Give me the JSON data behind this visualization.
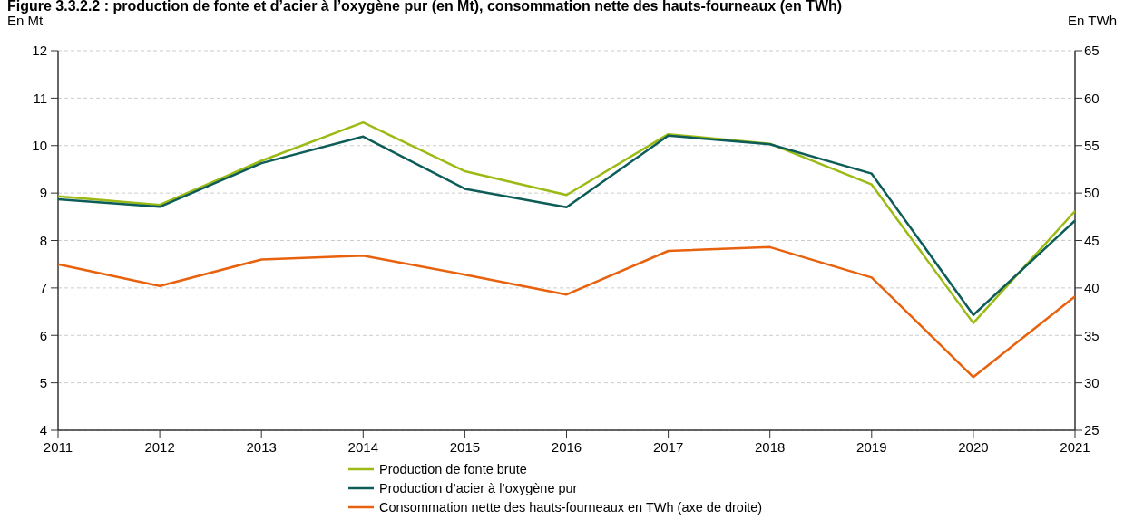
{
  "chart_data": {
    "type": "line",
    "title": "Figure 3.3.2.2 : production de fonte et d’acier à l’oxygène pur (en Mt), consommation nette des hauts-fourneaux (en TWh)",
    "ylabel": "En Mt",
    "y2label": "En TWh",
    "x": [
      2011,
      2012,
      2013,
      2014,
      2015,
      2016,
      2017,
      2018,
      2019,
      2020,
      2021
    ],
    "xlim": [
      2011,
      2021
    ],
    "xticks": [
      2011,
      2012,
      2013,
      2014,
      2015,
      2016,
      2017,
      2018,
      2019,
      2020,
      2021
    ],
    "ylim": [
      4,
      12
    ],
    "yticks": [
      4,
      5,
      6,
      7,
      8,
      9,
      10,
      11,
      12
    ],
    "y2lim": [
      25,
      65
    ],
    "y2ticks": [
      25,
      30,
      35,
      40,
      45,
      50,
      55,
      60,
      65
    ],
    "grid": "y",
    "legend": "bottom",
    "series": [
      {
        "name": "Production de fonte brute",
        "color": "#9bbb14",
        "values": [
          8.93,
          8.75,
          9.68,
          10.49,
          9.46,
          8.96,
          10.24,
          10.04,
          9.18,
          6.26,
          8.62
        ]
      },
      {
        "name": "Production d’acier à l’oxygène pur",
        "color": "#0d5c58",
        "values": [
          8.87,
          8.71,
          9.63,
          10.19,
          9.09,
          8.7,
          10.21,
          10.03,
          9.41,
          6.43,
          8.42
        ]
      },
      {
        "name": "Consommation nette des hauts-fourneaux en TWh (axe de droite)",
        "color": "#e8620e",
        "axis": "y2",
        "values": [
          42.5,
          40.2,
          43.0,
          43.4,
          41.4,
          39.3,
          43.9,
          44.3,
          41.1,
          30.6,
          39.1
        ]
      }
    ]
  }
}
